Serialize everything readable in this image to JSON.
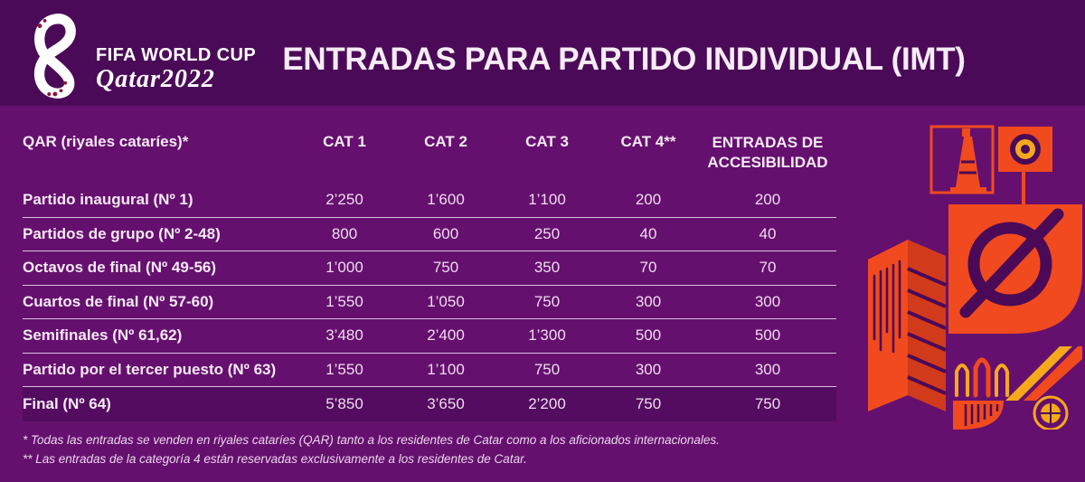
{
  "logo": {
    "line1": "FIFA WORLD CUP",
    "line2": "Qatar2022"
  },
  "header": {
    "title": "ENTRADAS PARA PARTIDO INDIVIDUAL (IMT)"
  },
  "table": {
    "row_header_label": "QAR (riyales cataríes)*",
    "columns": [
      "CAT 1",
      "CAT 2",
      "CAT 3",
      "CAT 4**",
      "ENTRADAS DE ACCESIBILIDAD"
    ],
    "rows": [
      {
        "label": "Partido inaugural  (Nº 1)",
        "values": [
          "2’250",
          "1’600",
          "1’100",
          "200",
          "200"
        ]
      },
      {
        "label": "Partidos de grupo (Nº 2-48)",
        "values": [
          "800",
          "600",
          "250",
          "40",
          "40"
        ]
      },
      {
        "label": "Octavos de final (Nº 49-56)",
        "values": [
          "1’000",
          "750",
          "350",
          "70",
          "70"
        ]
      },
      {
        "label": "Cuartos de final (Nº 57-60)",
        "values": [
          "1’550",
          "1’050",
          "750",
          "300",
          "300"
        ]
      },
      {
        "label": "Semifinales (Nº 61,62)",
        "values": [
          "3’480",
          "2’400",
          "1’300",
          "500",
          "500"
        ]
      },
      {
        "label": "Partido por el tercer puesto (Nº 63)",
        "values": [
          "1’550",
          "1’100",
          "750",
          "300",
          "300"
        ]
      },
      {
        "label": "Final (Nº 64)",
        "values": [
          "5’850",
          "3’650",
          "2’200",
          "750",
          "750"
        ],
        "highlight": true
      }
    ]
  },
  "footnotes": [
    "* Todas las entradas se venden en riyales cataríes (QAR) tanto a los residentes de Catar como a los aficionados internacionales.",
    "** Las entradas de la categoría 4 están reservadas exclusivamente a los residentes de Catar."
  ],
  "colors": {
    "background": "#65106E",
    "band": "#4B0A58",
    "highlight_row": "#530C60",
    "divider": "#DCC0E0",
    "text": "#F6E9F5",
    "accent_orange": "#F04A1E",
    "accent_orange_dark": "#D13A1A",
    "accent_yellow": "#F5A81C",
    "emblem_maroon": "#8A1538"
  }
}
